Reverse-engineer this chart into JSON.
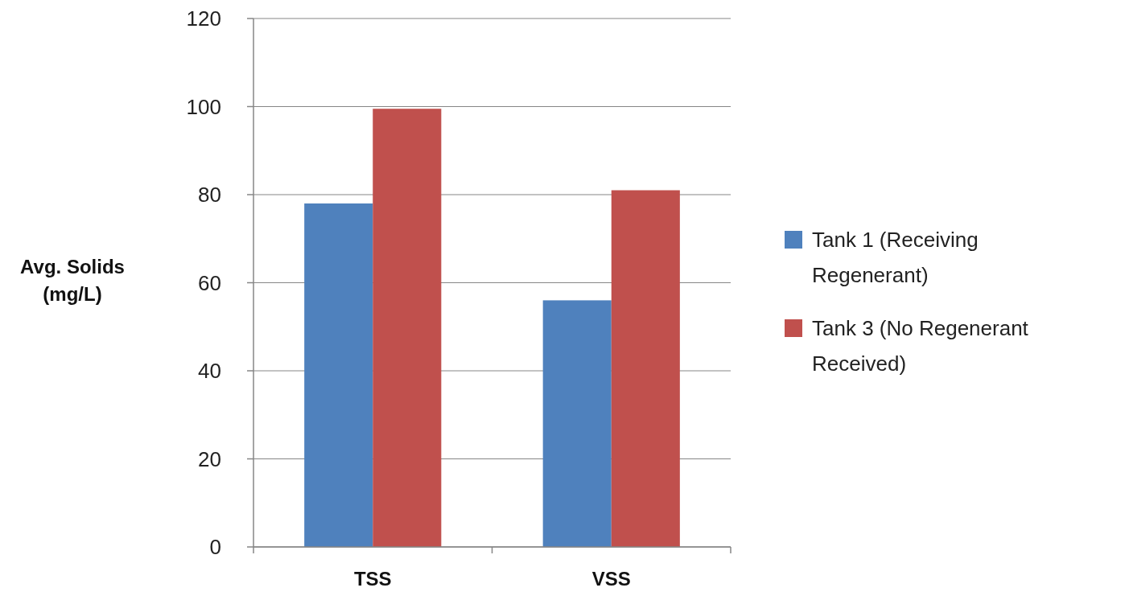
{
  "chart_data": {
    "type": "bar",
    "ylabel": "Avg. Solids (mg/L)",
    "categories": [
      "TSS",
      "VSS"
    ],
    "series": [
      {
        "name": "Tank 1 (Receiving Regenerant)",
        "color": "#4f81bd",
        "values": [
          78,
          56
        ]
      },
      {
        "name": "Tank 3 (No Regenerant Received)",
        "color": "#c0504d",
        "values": [
          99.5,
          81
        ]
      }
    ],
    "ylim": [
      0,
      120
    ],
    "yticks": [
      0,
      20,
      40,
      60,
      80,
      100,
      120
    ],
    "grid": "y",
    "legend": "right"
  }
}
